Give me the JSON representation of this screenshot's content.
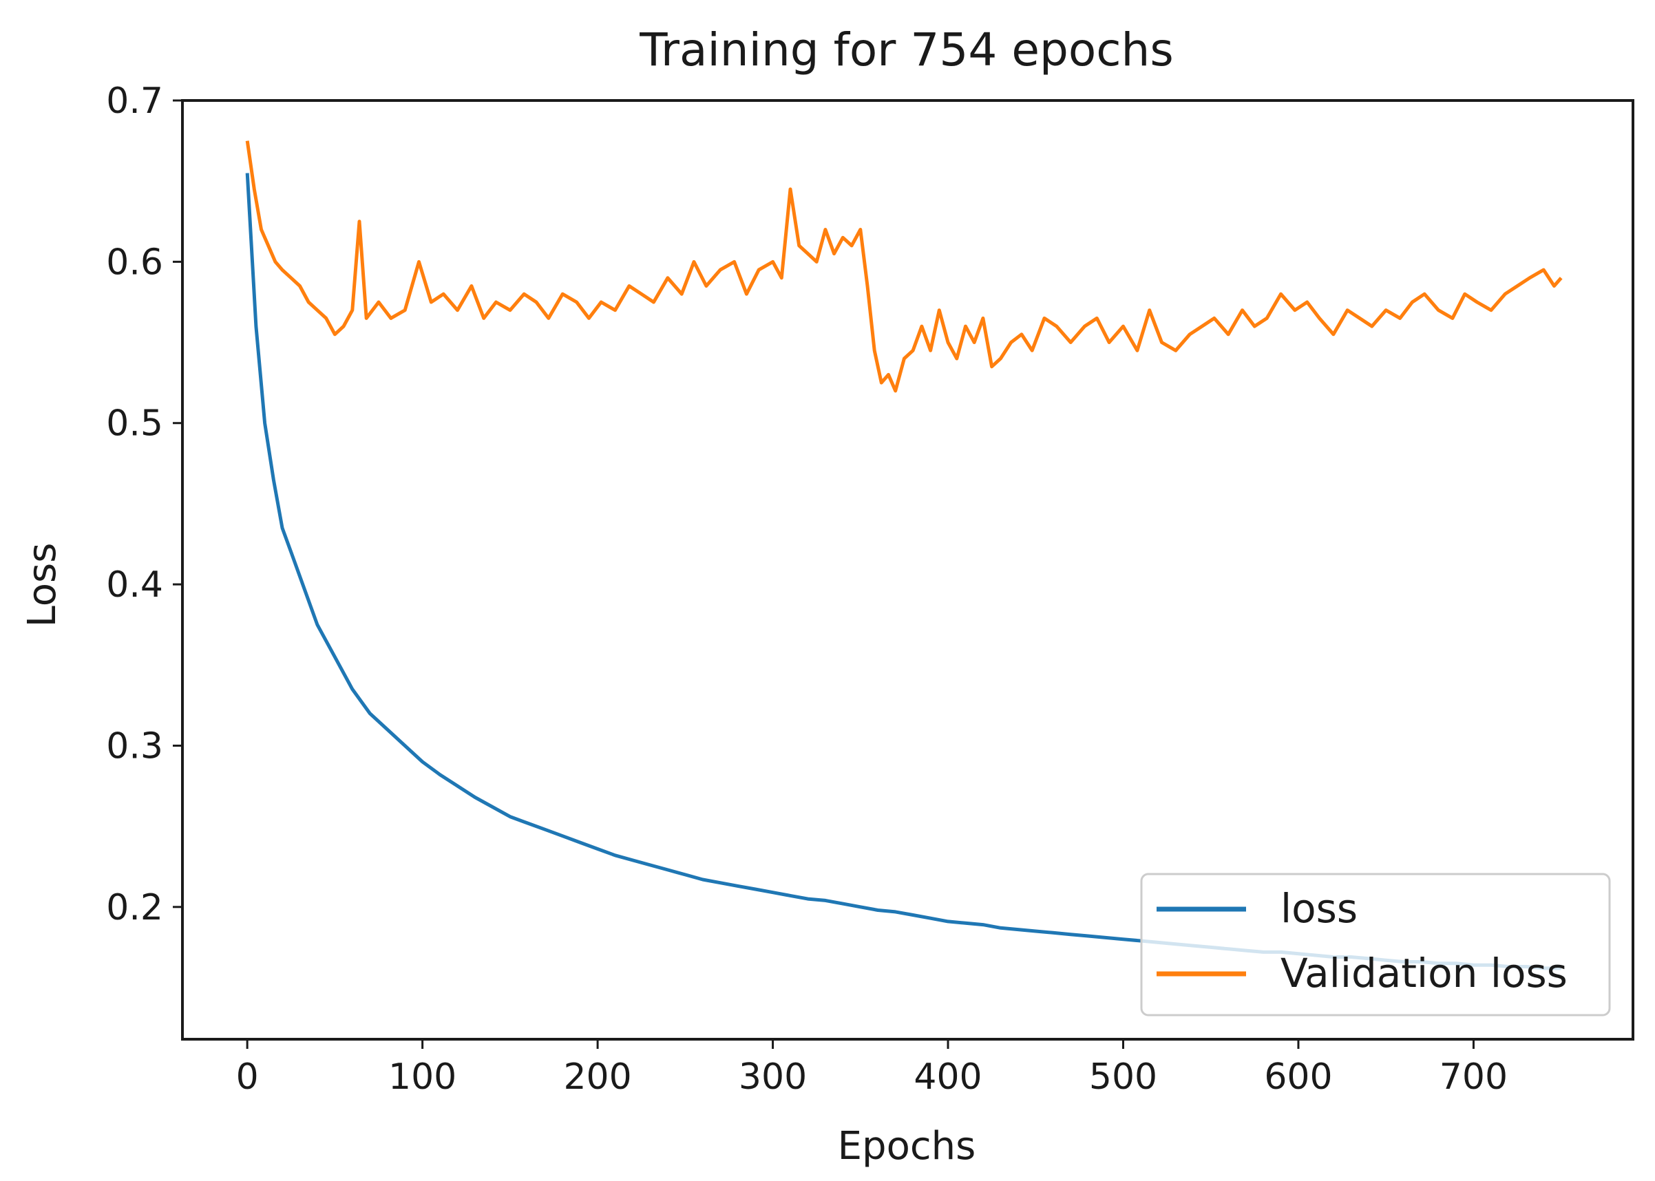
{
  "chart_data": {
    "type": "line",
    "title": "Training for 754 epochs",
    "xlabel": "Epochs",
    "ylabel": "Loss",
    "xlim": [
      -37,
      791
    ],
    "ylim": [
      0.118,
      0.7
    ],
    "xticks": [
      0,
      100,
      200,
      300,
      400,
      500,
      600,
      700
    ],
    "xtick_labels": [
      "0",
      "100",
      "200",
      "300",
      "400",
      "500",
      "600",
      "700"
    ],
    "yticks": [
      0.2,
      0.3,
      0.4,
      0.5,
      0.6,
      0.7
    ],
    "ytick_labels": [
      "0.2",
      "0.3",
      "0.4",
      "0.5",
      "0.6",
      "0.7"
    ],
    "grid": false,
    "legend_position": "lower-right",
    "series": [
      {
        "name": "loss",
        "color": "#1f77b4",
        "x": [
          0,
          5,
          10,
          15,
          20,
          25,
          30,
          40,
          50,
          60,
          70,
          80,
          90,
          100,
          110,
          120,
          130,
          140,
          150,
          160,
          170,
          180,
          190,
          200,
          210,
          220,
          230,
          240,
          250,
          260,
          270,
          280,
          290,
          300,
          310,
          320,
          330,
          340,
          350,
          360,
          370,
          380,
          390,
          400,
          410,
          420,
          430,
          440,
          450,
          460,
          470,
          480,
          490,
          500,
          510,
          520,
          530,
          540,
          550,
          560,
          570,
          580,
          590,
          600,
          610,
          620,
          630,
          640,
          650,
          660,
          670,
          680,
          690,
          700,
          710,
          720,
          730,
          740,
          750
        ],
        "values": [
          0.655,
          0.56,
          0.5,
          0.465,
          0.435,
          0.42,
          0.405,
          0.375,
          0.355,
          0.335,
          0.32,
          0.31,
          0.3,
          0.29,
          0.282,
          0.275,
          0.268,
          0.262,
          0.256,
          0.252,
          0.248,
          0.244,
          0.24,
          0.236,
          0.232,
          0.229,
          0.226,
          0.223,
          0.22,
          0.217,
          0.215,
          0.213,
          0.211,
          0.209,
          0.207,
          0.205,
          0.204,
          0.202,
          0.2,
          0.198,
          0.197,
          0.195,
          0.193,
          0.191,
          0.19,
          0.189,
          0.187,
          0.186,
          0.185,
          0.184,
          0.183,
          0.182,
          0.181,
          0.18,
          0.179,
          0.178,
          0.177,
          0.176,
          0.175,
          0.174,
          0.173,
          0.172,
          0.172,
          0.171,
          0.17,
          0.169,
          0.169,
          0.168,
          0.167,
          0.166,
          0.166,
          0.165,
          0.165,
          0.164,
          0.164,
          0.163,
          0.163,
          0.162,
          0.162
        ]
      },
      {
        "name": "Validation loss",
        "color": "#ff7f0e",
        "x": [
          0,
          4,
          8,
          12,
          16,
          20,
          25,
          30,
          35,
          40,
          45,
          50,
          55,
          60,
          64,
          68,
          75,
          82,
          90,
          98,
          105,
          112,
          120,
          128,
          135,
          142,
          150,
          158,
          165,
          172,
          180,
          188,
          195,
          202,
          210,
          218,
          225,
          232,
          240,
          248,
          255,
          262,
          270,
          278,
          285,
          292,
          300,
          305,
          310,
          315,
          320,
          325,
          330,
          335,
          340,
          345,
          350,
          354,
          358,
          362,
          366,
          370,
          375,
          380,
          385,
          390,
          395,
          400,
          405,
          410,
          415,
          420,
          425,
          430,
          436,
          442,
          448,
          455,
          462,
          470,
          478,
          485,
          492,
          500,
          508,
          515,
          522,
          530,
          538,
          545,
          552,
          560,
          568,
          575,
          582,
          590,
          598,
          605,
          612,
          620,
          628,
          635,
          642,
          650,
          658,
          665,
          672,
          680,
          688,
          695,
          702,
          710,
          718,
          725,
          732,
          740,
          746,
          750
        ],
        "values": [
          0.675,
          0.645,
          0.62,
          0.61,
          0.6,
          0.595,
          0.59,
          0.585,
          0.575,
          0.57,
          0.565,
          0.555,
          0.56,
          0.57,
          0.625,
          0.565,
          0.575,
          0.565,
          0.57,
          0.6,
          0.575,
          0.58,
          0.57,
          0.585,
          0.565,
          0.575,
          0.57,
          0.58,
          0.575,
          0.565,
          0.58,
          0.575,
          0.565,
          0.575,
          0.57,
          0.585,
          0.58,
          0.575,
          0.59,
          0.58,
          0.6,
          0.585,
          0.595,
          0.6,
          0.58,
          0.595,
          0.6,
          0.59,
          0.645,
          0.61,
          0.605,
          0.6,
          0.62,
          0.605,
          0.615,
          0.61,
          0.62,
          0.585,
          0.545,
          0.525,
          0.53,
          0.52,
          0.54,
          0.545,
          0.56,
          0.545,
          0.57,
          0.55,
          0.54,
          0.56,
          0.55,
          0.565,
          0.535,
          0.54,
          0.55,
          0.555,
          0.545,
          0.565,
          0.56,
          0.55,
          0.56,
          0.565,
          0.55,
          0.56,
          0.545,
          0.57,
          0.55,
          0.545,
          0.555,
          0.56,
          0.565,
          0.555,
          0.57,
          0.56,
          0.565,
          0.58,
          0.57,
          0.575,
          0.565,
          0.555,
          0.57,
          0.565,
          0.56,
          0.57,
          0.565,
          0.575,
          0.58,
          0.57,
          0.565,
          0.58,
          0.575,
          0.57,
          0.58,
          0.585,
          0.59,
          0.595,
          0.585,
          0.59
        ]
      }
    ]
  }
}
